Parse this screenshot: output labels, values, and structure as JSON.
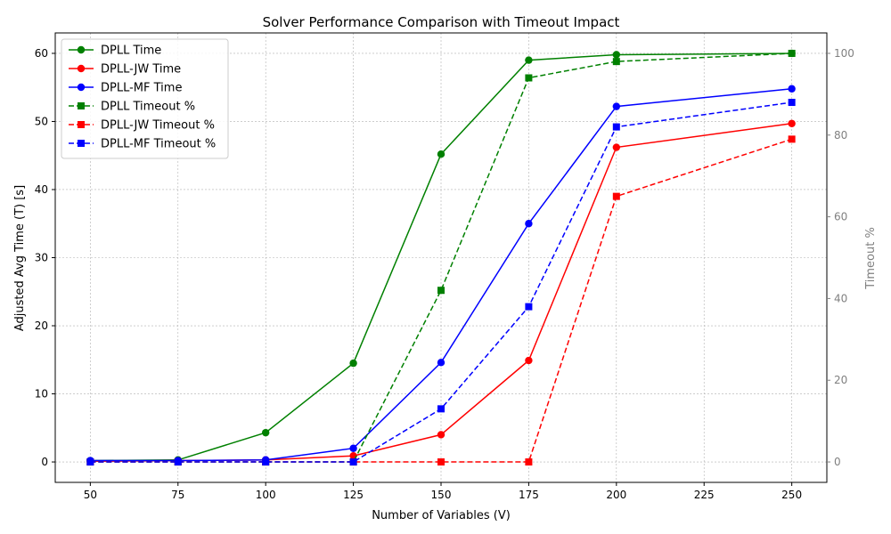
{
  "chart_data": {
    "type": "line",
    "title": "Solver Performance Comparison with Timeout Impact",
    "xlabel": "Number of Variables (V)",
    "ylabel": "Adjusted Avg Time (T) [s]",
    "y2label": "Timeout %",
    "x": [
      50,
      75,
      100,
      125,
      150,
      175,
      200,
      250
    ],
    "xlim": [
      40,
      260
    ],
    "ylim": [
      -3,
      63
    ],
    "y2lim": [
      -5,
      105
    ],
    "xticks": [
      "50",
      "75",
      "100",
      "125",
      "150",
      "175",
      "200",
      "225",
      "250"
    ],
    "yticks": [
      "0",
      "10",
      "20",
      "30",
      "40",
      "50",
      "60"
    ],
    "y2ticks": [
      "0",
      "20",
      "40",
      "60",
      "80",
      "100"
    ],
    "grid": true,
    "legend_position": "upper-left",
    "series": [
      {
        "name": "DPLL Time",
        "axis": "left",
        "color": "#008000",
        "style": "solid",
        "marker": "circle",
        "values": [
          0.2,
          0.3,
          4.3,
          14.5,
          45.2,
          59.0,
          59.8,
          60.0
        ]
      },
      {
        "name": "DPLL-JW Time",
        "axis": "left",
        "color": "#ff0000",
        "style": "solid",
        "marker": "circle",
        "values": [
          0.1,
          0.2,
          0.3,
          0.9,
          4.0,
          14.9,
          46.2,
          49.7
        ]
      },
      {
        "name": "DPLL-MF Time",
        "axis": "left",
        "color": "#0000ff",
        "style": "solid",
        "marker": "circle",
        "values": [
          0.2,
          0.2,
          0.3,
          2.0,
          14.6,
          35.0,
          52.2,
          54.8
        ]
      },
      {
        "name": "DPLL Timeout %",
        "axis": "right",
        "color": "#008000",
        "style": "dashed",
        "marker": "square",
        "values": [
          0,
          0,
          0,
          0,
          42,
          94,
          98,
          100
        ]
      },
      {
        "name": "DPLL-JW Timeout %",
        "axis": "right",
        "color": "#ff0000",
        "style": "dashed",
        "marker": "square",
        "values": [
          0,
          0,
          0,
          0,
          0,
          0,
          65,
          79
        ]
      },
      {
        "name": "DPLL-MF Timeout %",
        "axis": "right",
        "color": "#0000ff",
        "style": "dashed",
        "marker": "square",
        "values": [
          0,
          0,
          0,
          0,
          13,
          38,
          82,
          88
        ]
      }
    ]
  }
}
